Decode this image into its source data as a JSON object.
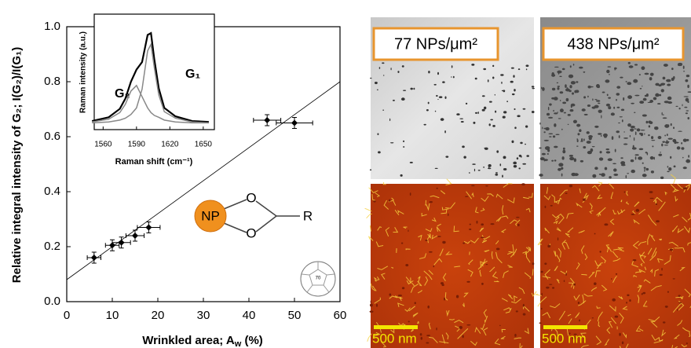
{
  "chart_data": [
    {
      "type": "scatter",
      "x_label": "Wrinkled area; A",
      "x_label_sub": "w",
      "x_label_end": " (%)",
      "y_label": "Relative integral intensity of G₂; I(G₂)/I(G₁)",
      "x": [
        6,
        10,
        12,
        15,
        18,
        44,
        50
      ],
      "y": [
        0.16,
        0.205,
        0.215,
        0.24,
        0.27,
        0.66,
        0.65
      ],
      "xerr": [
        1.5,
        1.5,
        2,
        2,
        2.5,
        3,
        4
      ],
      "yerr": [
        0.02,
        0.02,
        0.02,
        0.02,
        0.02,
        0.02,
        0.02
      ],
      "color": "#000000",
      "fit": {
        "x": [
          0,
          60
        ],
        "y": [
          0.08,
          0.8
        ],
        "color": "#000000"
      },
      "xlim": [
        0,
        60
      ],
      "xticks": [
        0,
        10,
        20,
        30,
        40,
        50,
        60
      ],
      "ylim": [
        0,
        1
      ],
      "yticks": [
        {
          "value": 0,
          "label": "0.0"
        },
        0.2,
        0.4,
        0.6,
        0.8,
        {
          "value": 1,
          "label": "1.0"
        }
      ],
      "annotations": {
        "np": "NP",
        "o1": "O",
        "o2": "O",
        "r": "R",
        "c70": "70"
      }
    },
    {
      "type": "line",
      "x_label": "Raman shift (cm⁻¹)",
      "y_label": "Raman intensity (a.u.)",
      "x": [
        1550,
        1565,
        1575,
        1580,
        1585,
        1590,
        1595,
        1600,
        1603,
        1606,
        1610,
        1615,
        1625,
        1640,
        1655
      ],
      "series": [
        {
          "color": "#000000",
          "values": [
            0.05,
            0.09,
            0.18,
            0.29,
            0.47,
            0.6,
            0.68,
            0.97,
            0.99,
            0.71,
            0.4,
            0.19,
            0.1,
            0.05,
            0.04
          ]
        },
        {
          "color": "#888888",
          "values": [
            0.03,
            0.04,
            0.06,
            0.08,
            0.12,
            0.19,
            0.39,
            0.8,
            0.87,
            0.62,
            0.33,
            0.15,
            0.08,
            0.04,
            0.03
          ]
        },
        {
          "color": "#888888",
          "values": [
            0.04,
            0.07,
            0.14,
            0.23,
            0.37,
            0.43,
            0.31,
            0.19,
            0.14,
            0.11,
            0.09,
            0.06,
            0.04,
            0.03,
            0.03
          ]
        }
      ],
      "xlim": [
        1552,
        1660
      ],
      "xticks": [
        1560,
        1590,
        1620,
        1650
      ],
      "ylim": [
        0,
        1.05
      ],
      "annotations": {
        "g2": "G₂",
        "g1": "G₁"
      }
    }
  ],
  "images": {
    "density_1": "77 NPs/μm²",
    "density_2": "438 NPs/μm²",
    "scale_1": "500 nm",
    "scale_2": "500 nm"
  }
}
